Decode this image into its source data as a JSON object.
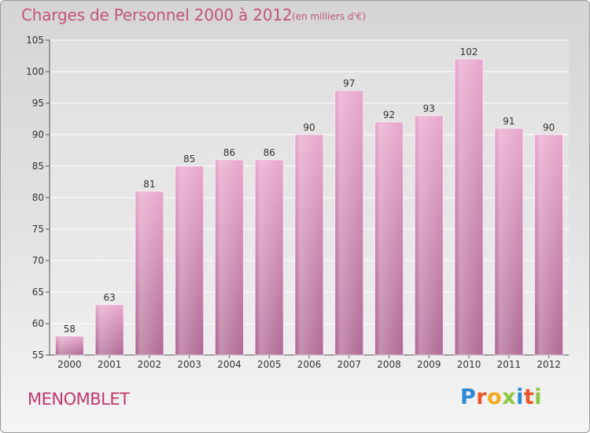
{
  "header": {
    "title": "Charges de Personnel 2000 à 2012",
    "subtitle": "(en milliers d'€)"
  },
  "footer": {
    "commune": "MENOMBLET",
    "logo": "Proxiti"
  },
  "colors": {
    "bar_top": "#e8a9cc",
    "bar_bottom": "#b06b94",
    "title": "#c2557e"
  },
  "chart_data": {
    "type": "bar",
    "categories": [
      "2000",
      "2001",
      "2002",
      "2003",
      "2004",
      "2005",
      "2006",
      "2007",
      "2008",
      "2009",
      "2010",
      "2011",
      "2012"
    ],
    "values": [
      58,
      63,
      81,
      85,
      86,
      86,
      90,
      97,
      92,
      93,
      102,
      91,
      90
    ],
    "title": "Charges de Personnel 2000 à 2012",
    "subtitle": "(en milliers d'€)",
    "ylim": [
      55,
      105
    ],
    "yticks": [
      55,
      60,
      65,
      70,
      75,
      80,
      85,
      90,
      95,
      100,
      105
    ],
    "grid": true
  }
}
